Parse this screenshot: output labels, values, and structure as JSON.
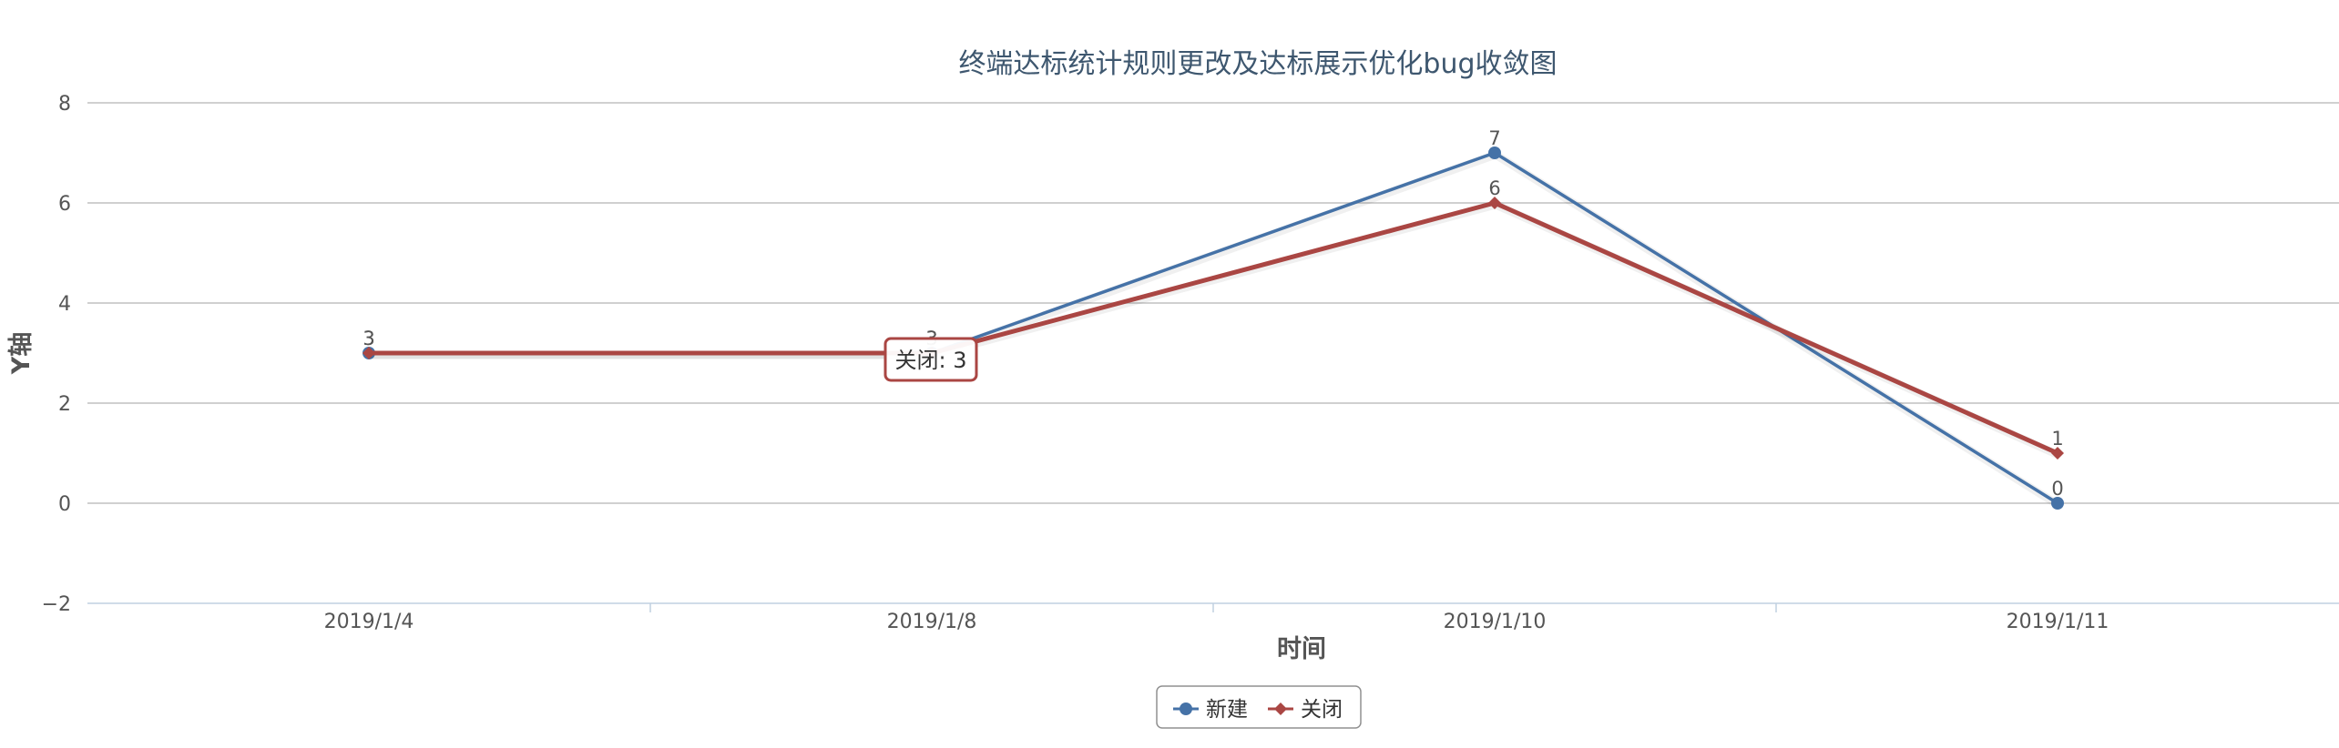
{
  "chart_data": {
    "type": "line",
    "title": "终端达标统计规则更改及达标展示优化bug收敛图",
    "xlabel": "时间",
    "ylabel": "Y轴",
    "categories": [
      "2019/1/4",
      "2019/1/8",
      "2019/1/10",
      "2019/1/11"
    ],
    "ylim": [
      -2,
      8
    ],
    "yticks": [
      -2,
      0,
      2,
      4,
      6,
      8
    ],
    "ytick_labels": [
      "−2",
      "0",
      "2",
      "4",
      "6",
      "8"
    ],
    "grid": true,
    "legend_position": "bottom-center",
    "series": [
      {
        "name": "新建",
        "values": [
          3,
          3,
          7,
          0
        ],
        "color": "#4572a7",
        "marker": "circle"
      },
      {
        "name": "关闭",
        "values": [
          3,
          3,
          6,
          1
        ],
        "color": "#aa4643",
        "marker": "diamond"
      }
    ],
    "tooltip": {
      "text": "关闭: 3"
    }
  }
}
